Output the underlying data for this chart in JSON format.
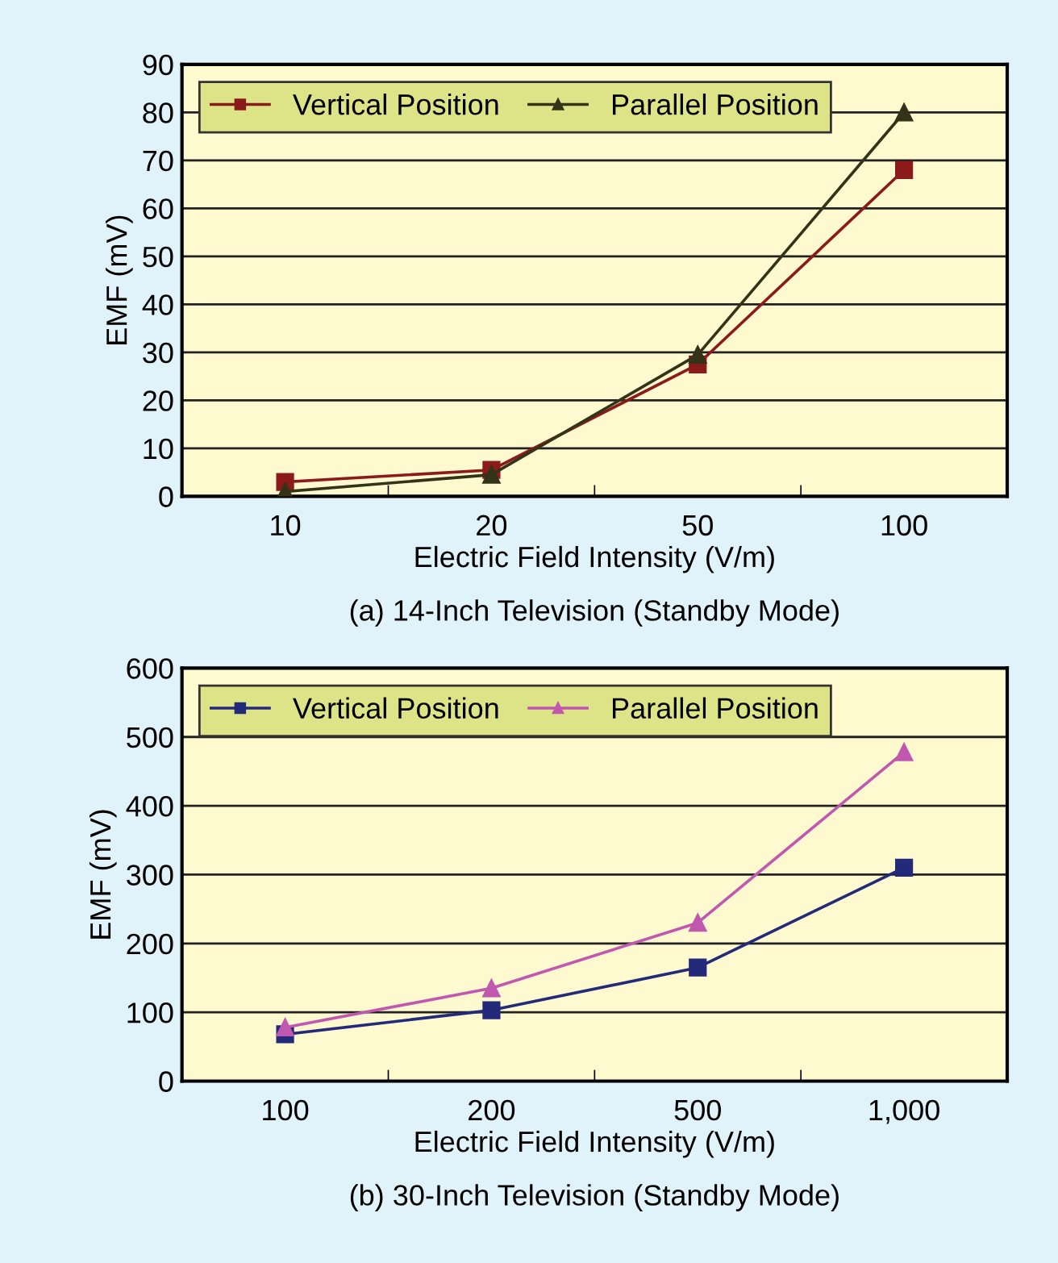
{
  "chart_data": [
    {
      "type": "line",
      "categories": [
        "10",
        "20",
        "50",
        "100"
      ],
      "xlabel": "Electric Field Intensity (V/m)",
      "ylabel": "EMF (mV)",
      "ylim": [
        0,
        90
      ],
      "yticks": [
        0,
        10,
        20,
        30,
        40,
        50,
        60,
        70,
        80,
        90
      ],
      "grid": "y",
      "legend": "top left",
      "annotations": [
        "(a) 14-Inch Television (Standby Mode)"
      ],
      "series": [
        {
          "name": "Vertical Position",
          "color": "#8b1a1a",
          "marker": "square",
          "values": [
            3,
            5.5,
            27.5,
            68
          ]
        },
        {
          "name": "Parallel Position",
          "color": "#333318",
          "marker": "triangle",
          "values": [
            1,
            4.5,
            29.5,
            80
          ]
        }
      ]
    },
    {
      "type": "line",
      "categories": [
        "100",
        "200",
        "500",
        "1,000"
      ],
      "xlabel": "Electric Field Intensity (V/m)",
      "ylabel": "EMF (mV)",
      "ylim": [
        0,
        600
      ],
      "yticks": [
        0,
        100,
        200,
        300,
        400,
        500,
        600
      ],
      "grid": "y",
      "legend": "top left",
      "annotations": [
        "(b) 30-Inch Television (Standby Mode)"
      ],
      "series": [
        {
          "name": "Vertical Position",
          "color": "#232a7a",
          "marker": "square",
          "values": [
            68,
            103,
            165,
            310
          ]
        },
        {
          "name": "Parallel Position",
          "color": "#c058b0",
          "marker": "triangle",
          "values": [
            78,
            135,
            230,
            478
          ]
        }
      ]
    }
  ]
}
